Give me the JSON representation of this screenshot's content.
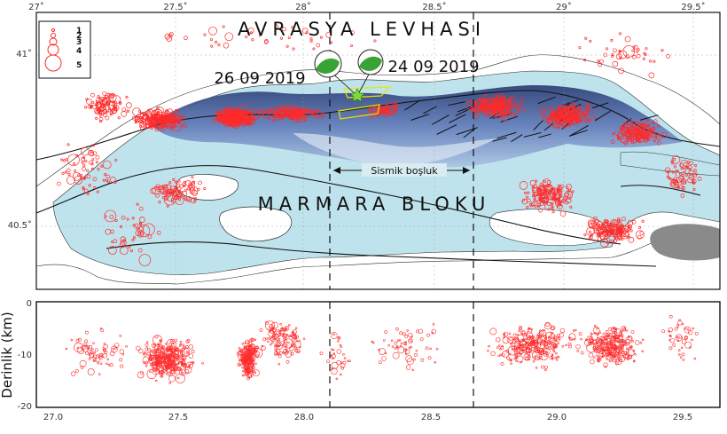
{
  "map": {
    "top_ticks": [
      "27˚",
      "27.5˚",
      "28˚",
      "28.5˚",
      "29˚",
      "29.5˚"
    ],
    "left_ticks": [
      "41˚",
      "40.5˚"
    ],
    "title_top": "AVRASYA LEVHASI",
    "title_mid": "MARMARA BLOKU",
    "date_left": "26 09 2019",
    "date_right": "24 09 2019",
    "gap_label": "Sismik boşluk",
    "legend": [
      "1",
      "2",
      "3",
      "4",
      "5"
    ],
    "colors": {
      "sea": "#bfe3ec",
      "deep": "#3b5fa5",
      "quake": "#ff2a2a",
      "fault": "#111111"
    }
  },
  "depth": {
    "ylabel": "Derinlik (km)",
    "y_ticks": [
      "0",
      "-10",
      "-20"
    ],
    "x_ticks": [
      "27.0",
      "27.5",
      "28.0",
      "28.5",
      "29.0",
      "29.5"
    ]
  }
}
